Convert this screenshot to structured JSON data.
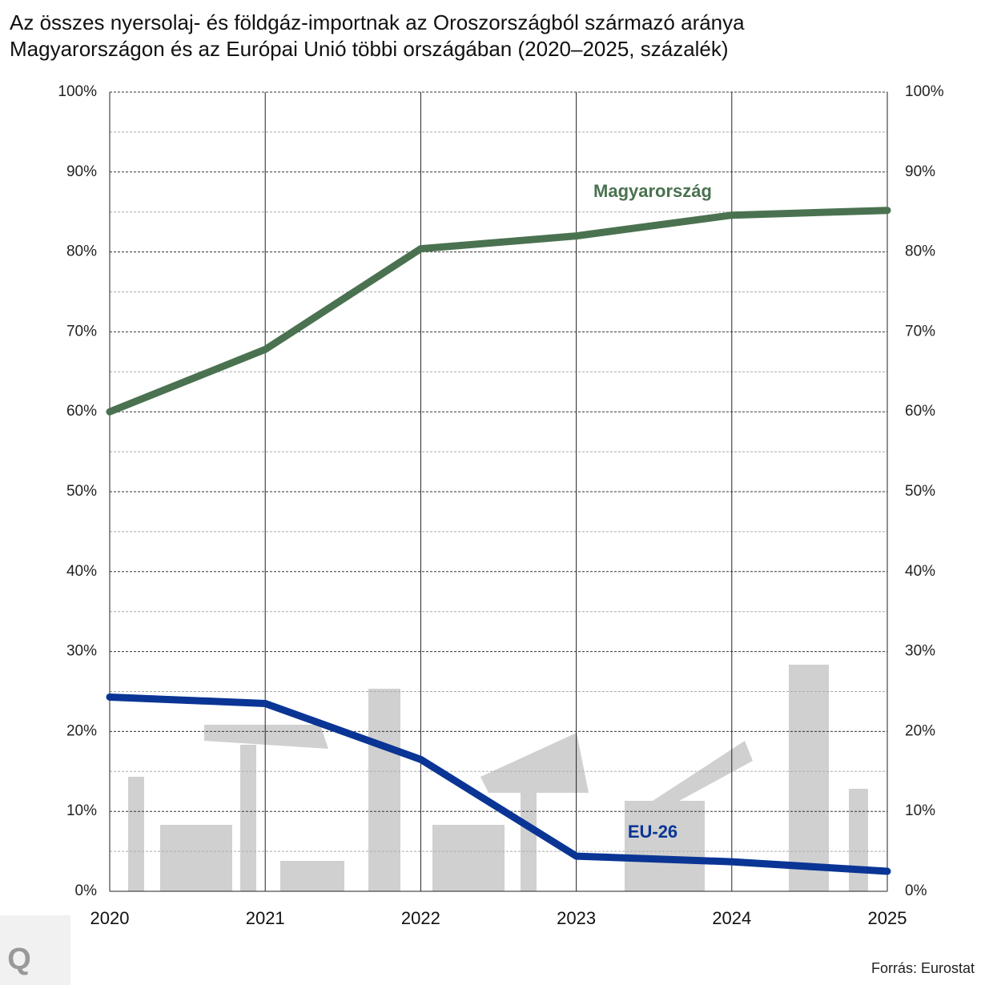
{
  "chart_data": {
    "type": "line",
    "title": [
      "Az összes nyersolaj- és földgáz-importnak az Oroszországból származó aránya",
      "Magyarországon és az Európai Unió többi országában (2020–2025, százalék)"
    ],
    "x": [
      2020,
      2021,
      2022,
      2023,
      2024,
      2025
    ],
    "xlim": [
      2020,
      2025
    ],
    "xticks": [
      2020,
      2021,
      2022,
      2023,
      2024,
      2025
    ],
    "ylim": [
      0,
      100
    ],
    "yticks": [
      {
        "value": 0,
        "label": "0%"
      },
      {
        "value": 10,
        "label": "10%"
      },
      {
        "value": 20,
        "label": "20%"
      },
      {
        "value": 30,
        "label": "30%"
      },
      {
        "value": 40,
        "label": "40%"
      },
      {
        "value": 50,
        "label": "50%"
      },
      {
        "value": 60,
        "label": "60%"
      },
      {
        "value": 70,
        "label": "70%"
      },
      {
        "value": 80,
        "label": "80%"
      },
      {
        "value": 90,
        "label": "90%"
      },
      {
        "value": 100,
        "label": "100%"
      }
    ],
    "minor_yticks": [
      5,
      15,
      25,
      35,
      45,
      55,
      65,
      75,
      85,
      95
    ],
    "grid": true,
    "series": [
      {
        "name": "Magyarország",
        "color": "#4a7250",
        "values": [
          60,
          67.8,
          80.4,
          82,
          84.6,
          85.2
        ]
      },
      {
        "name": "EU-26",
        "color": "#0a3595",
        "values": [
          24.3,
          23.5,
          16.5,
          4.4,
          3.7,
          2.5
        ]
      }
    ],
    "source": "Forrás: Eurostat",
    "logo": "Q"
  }
}
